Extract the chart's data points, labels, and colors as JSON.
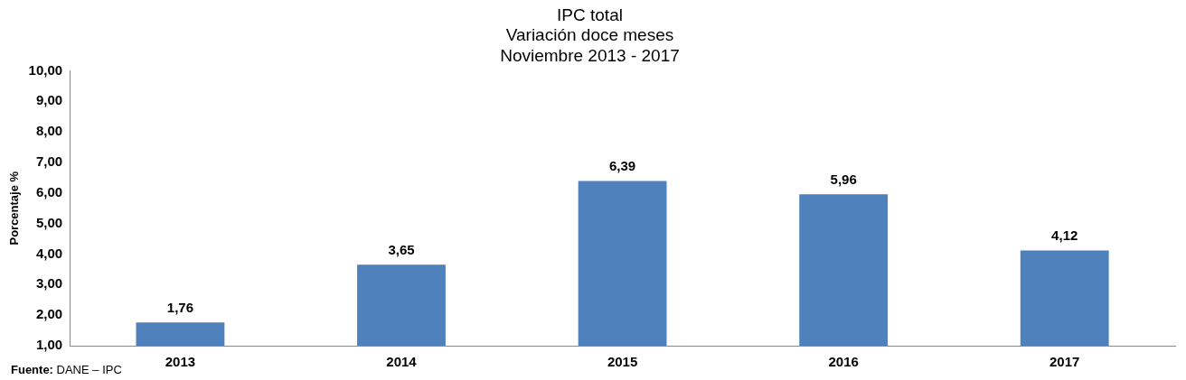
{
  "chart_data": {
    "type": "bar",
    "title": "IPC total\nVariación doce meses\nNoviembre 2013 - 2017",
    "ylabel": "Porcentaje %",
    "categories": [
      "2013",
      "2014",
      "2015",
      "2016",
      "2017"
    ],
    "values": [
      1.76,
      3.65,
      6.39,
      5.96,
      4.12
    ],
    "color": "#4f81bd",
    "value_labels": [
      "1,76",
      "3,65",
      "6,39",
      "5,96",
      "4,12"
    ],
    "ylim": [
      1,
      10
    ],
    "yticks": [
      {
        "value": 1,
        "label": "1,00"
      },
      {
        "value": 2,
        "label": "2,00"
      },
      {
        "value": 3,
        "label": "3,00"
      },
      {
        "value": 4,
        "label": "4,00"
      },
      {
        "value": 5,
        "label": "5,00"
      },
      {
        "value": 6,
        "label": "6,00"
      },
      {
        "value": 7,
        "label": "7,00"
      },
      {
        "value": 8,
        "label": "8,00"
      },
      {
        "value": 9,
        "label": "9,00"
      },
      {
        "value": 10,
        "label": "10,00"
      }
    ],
    "grid": false,
    "legend": false,
    "annotations": [
      "Fuente: DANE – IPC"
    ]
  }
}
